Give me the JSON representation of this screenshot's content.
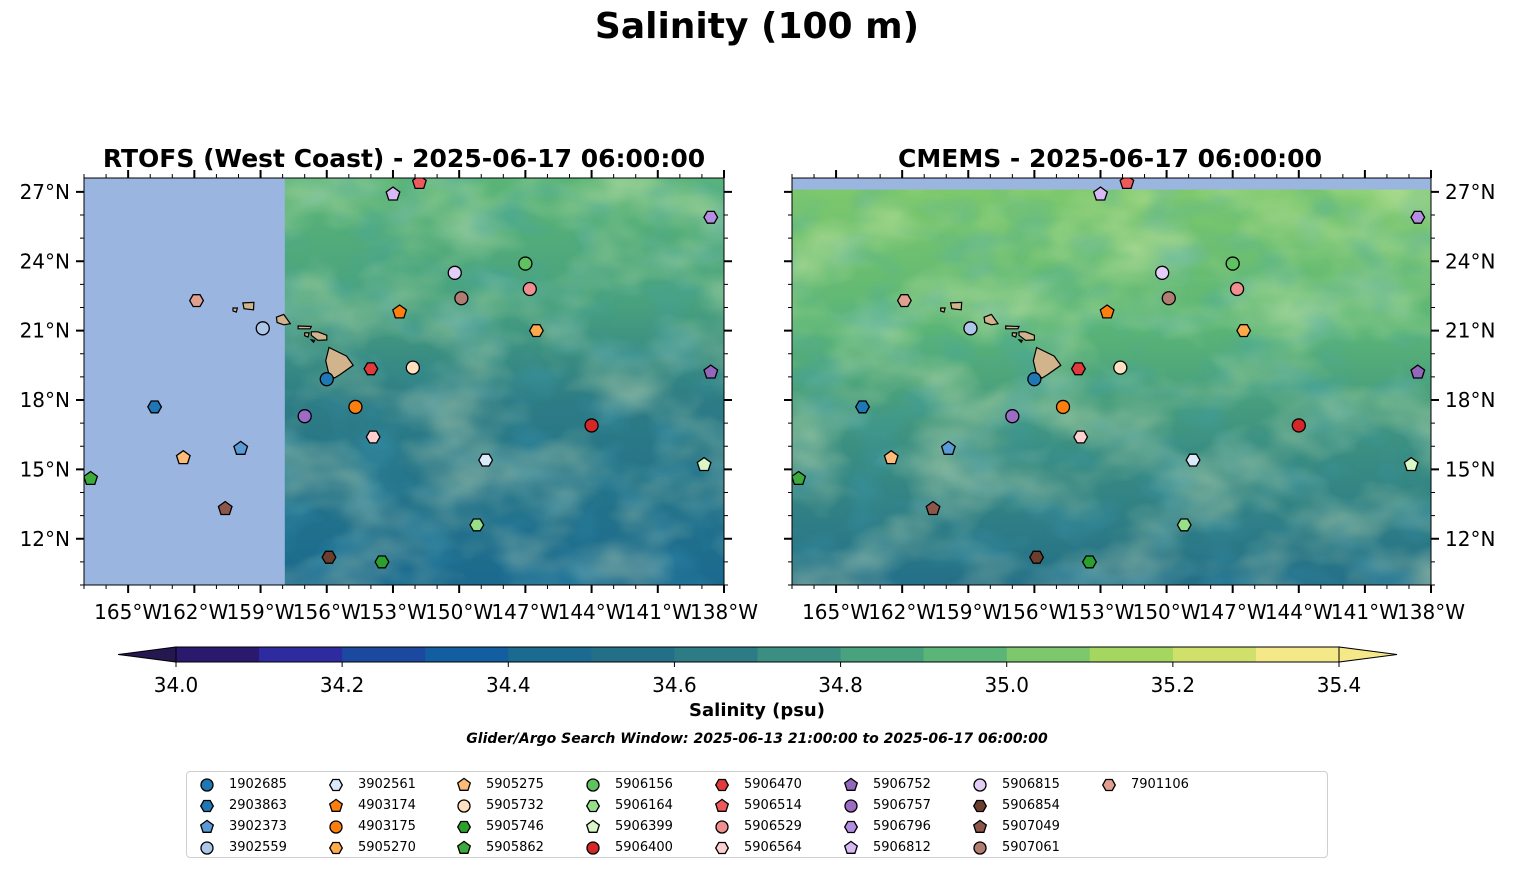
{
  "figure": {
    "title": "Salinity (100 m)",
    "colorbar_label": "Salinity (psu)",
    "search_window": "Glider/Argo Search Window: 2025-06-13 21:00:00 to 2025-06-17 06:00:00"
  },
  "panels": [
    {
      "title": "RTOFS (West Coast) - 2025-06-17 06:00:00",
      "model": "RTOFS",
      "data_lon_min": -157.9,
      "land_fill": "#9ab5e0"
    },
    {
      "title": "CMEMS - 2025-06-17 06:00:00",
      "model": "CMEMS",
      "data_lat_max": 27.1,
      "land_fill": "#9ab5e0"
    }
  ],
  "map_extent": {
    "lon_min": -167,
    "lon_max": -138,
    "lat_min": 10,
    "lat_max": 27.6
  },
  "axes": {
    "lon_ticks": [
      -165,
      -162,
      -159,
      -156,
      -153,
      -150,
      -147,
      -144,
      -141,
      -138
    ],
    "lon_tick_labels": [
      "165°W",
      "162°W",
      "159°W",
      "156°W",
      "153°W",
      "150°W",
      "147°W",
      "144°W",
      "141°W",
      "138°W"
    ],
    "lat_ticks": [
      12,
      15,
      18,
      21,
      24,
      27
    ],
    "lat_tick_labels": [
      "12°N",
      "15°N",
      "18°N",
      "21°N",
      "24°N",
      "27°N"
    ]
  },
  "colorbar": {
    "min": 34.0,
    "max": 35.4,
    "step": 0.1,
    "extend": "both",
    "tick_values": [
      34.0,
      34.2,
      34.4,
      34.6,
      34.8,
      35.0,
      35.2,
      35.4
    ],
    "tick_labels": [
      "34.0",
      "34.2",
      "34.4",
      "34.6",
      "34.8",
      "35.0",
      "35.2",
      "35.4"
    ],
    "under_color": "#25174f",
    "over_color": "#f5e888",
    "colors": [
      "#2a1a6e",
      "#2e2ba0",
      "#1c49a0",
      "#125ea0",
      "#1b6a8f",
      "#246f88",
      "#2d7c85",
      "#3b8f82",
      "#49a27e",
      "#5bb576",
      "#7dc86c",
      "#a5d65f",
      "#cfe06b",
      "#f5e888"
    ]
  },
  "land_color": "#d2b48c",
  "chart_data": {
    "type": "scatter",
    "x_unit": "longitude (degrees east)",
    "y_unit": "latitude (degrees north)",
    "series": [
      {
        "name": "1902685",
        "marker": "circle",
        "color": "#1f77b4",
        "lon": -156.0,
        "lat": 18.9
      },
      {
        "name": "2903863",
        "marker": "hexagon",
        "color": "#1f77b4",
        "lon": -163.8,
        "lat": 17.7
      },
      {
        "name": "3902373",
        "marker": "pentagon",
        "color": "#5b9bd5",
        "lon": -159.9,
        "lat": 15.9
      },
      {
        "name": "3902559",
        "marker": "circle",
        "color": "#aec7e8",
        "lon": -158.9,
        "lat": 21.1
      },
      {
        "name": "3902561",
        "marker": "hexagon",
        "color": "#dbeafb",
        "lon": -148.8,
        "lat": 15.4
      },
      {
        "name": "4903174",
        "marker": "pentagon",
        "color": "#ff7f0e",
        "lon": -152.7,
        "lat": 21.8
      },
      {
        "name": "4903175",
        "marker": "circle",
        "color": "#ff7f0e",
        "lon": -154.7,
        "lat": 17.7
      },
      {
        "name": "5905270",
        "marker": "hexagon",
        "color": "#ffa94d",
        "lon": -146.5,
        "lat": 21.0
      },
      {
        "name": "5905275",
        "marker": "pentagon",
        "color": "#ffbb78",
        "lon": -162.5,
        "lat": 15.5
      },
      {
        "name": "5905732",
        "marker": "circle",
        "color": "#ffe0c0",
        "lon": -152.1,
        "lat": 19.4
      },
      {
        "name": "5905746",
        "marker": "hexagon",
        "color": "#2ca02c",
        "lon": -153.5,
        "lat": 11.0
      },
      {
        "name": "5905862",
        "marker": "pentagon",
        "color": "#3caa3c",
        "lon": -166.7,
        "lat": 14.6
      },
      {
        "name": "5906156",
        "marker": "circle",
        "color": "#5fc15f",
        "lon": -147.0,
        "lat": 23.9
      },
      {
        "name": "5906164",
        "marker": "hexagon",
        "color": "#98df8a",
        "lon": -149.2,
        "lat": 12.6
      },
      {
        "name": "5906399",
        "marker": "pentagon",
        "color": "#d9f7c7",
        "lon": -138.9,
        "lat": 15.2
      },
      {
        "name": "5906400",
        "marker": "circle",
        "color": "#d62728",
        "lon": -144.0,
        "lat": 16.9
      },
      {
        "name": "5906470",
        "marker": "hexagon",
        "color": "#e03a3c",
        "lon": -154.0,
        "lat": 19.35
      },
      {
        "name": "5906514",
        "marker": "pentagon",
        "color": "#ee5a5a",
        "lon": -151.8,
        "lat": 27.4
      },
      {
        "name": "5906529",
        "marker": "circle",
        "color": "#f08f8f",
        "lon": -146.8,
        "lat": 22.8
      },
      {
        "name": "5906564",
        "marker": "hexagon",
        "color": "#ffd0d0",
        "lon": -153.9,
        "lat": 16.4
      },
      {
        "name": "5906752",
        "marker": "pentagon",
        "color": "#9467bd",
        "lon": -138.6,
        "lat": 19.2
      },
      {
        "name": "5906757",
        "marker": "circle",
        "color": "#9c6bc4",
        "lon": -157.0,
        "lat": 17.3
      },
      {
        "name": "5906796",
        "marker": "hexagon",
        "color": "#b48ee0",
        "lon": -138.6,
        "lat": 25.9
      },
      {
        "name": "5906812",
        "marker": "pentagon",
        "color": "#d8b8f5",
        "lon": -153.0,
        "lat": 26.9
      },
      {
        "name": "5906815",
        "marker": "circle",
        "color": "#e3cef8",
        "lon": -150.2,
        "lat": 23.5
      },
      {
        "name": "5906854",
        "marker": "hexagon",
        "color": "#6b3e2e",
        "lon": -155.9,
        "lat": 11.2
      },
      {
        "name": "5907049",
        "marker": "pentagon",
        "color": "#8c564b",
        "lon": -160.6,
        "lat": 13.3
      },
      {
        "name": "5907061",
        "marker": "circle",
        "color": "#b07d72",
        "lon": -149.9,
        "lat": 22.4
      },
      {
        "name": "7901106",
        "marker": "hexagon",
        "color": "#e0a090",
        "lon": -161.9,
        "lat": 22.3
      }
    ]
  }
}
